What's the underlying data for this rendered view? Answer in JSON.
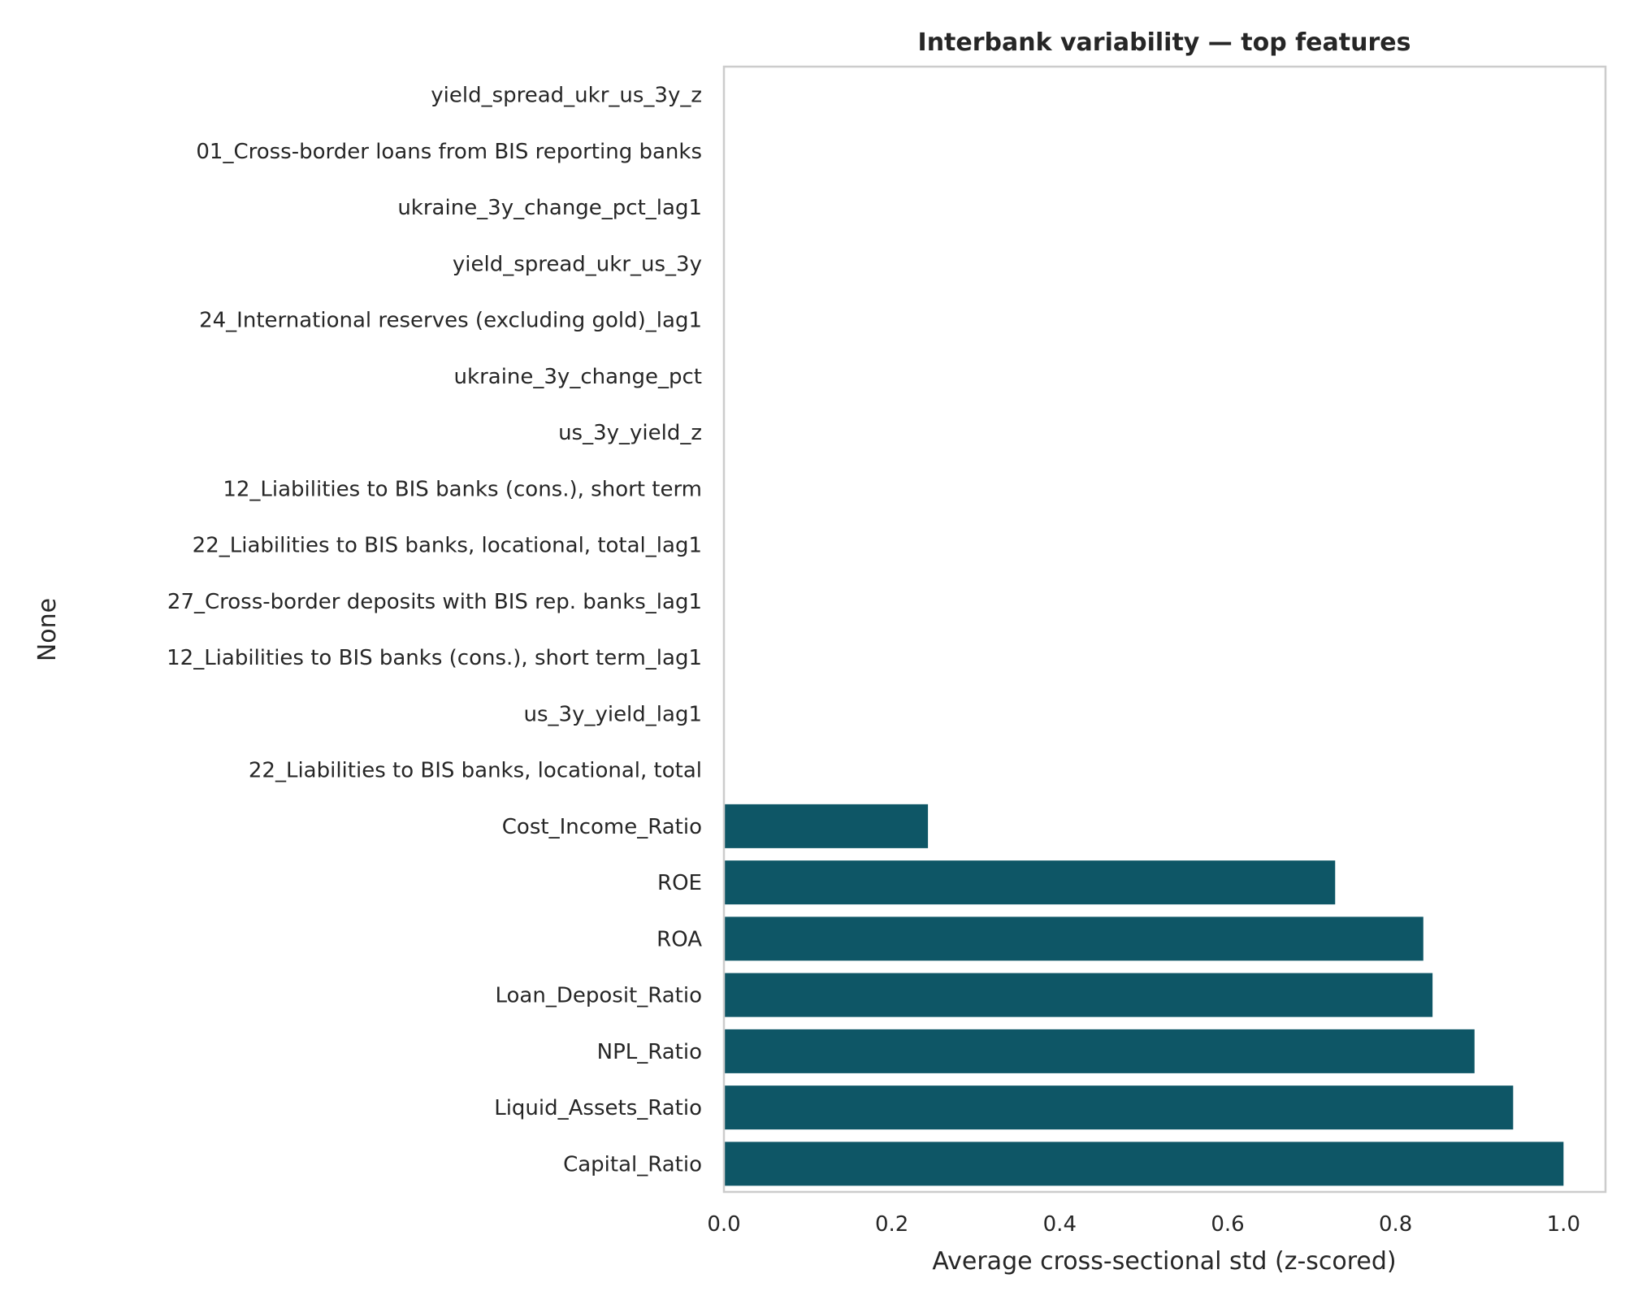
{
  "colors": {
    "bar": "#0e5666",
    "frame": "#cccccc",
    "text": "#262626",
    "background": "#ffffff"
  },
  "chart_data": {
    "type": "bar",
    "orientation": "horizontal",
    "title": "Interbank variability — top features",
    "xlabel": "Average cross-sectional std (z-scored)",
    "ylabel": "None",
    "xlim": [
      0,
      1.05
    ],
    "xticks": [
      0.0,
      0.2,
      0.4,
      0.6,
      0.8,
      1.0
    ],
    "xtick_labels": [
      "0.0",
      "0.2",
      "0.4",
      "0.6",
      "0.8",
      "1.0"
    ],
    "grid": false,
    "categories": [
      "yield_spread_ukr_us_3y_z",
      "01_Cross-border loans from BIS reporting banks",
      "ukraine_3y_change_pct_lag1",
      "yield_spread_ukr_us_3y",
      "24_International reserves (excluding gold)_lag1",
      "ukraine_3y_change_pct",
      "us_3y_yield_z",
      "12_Liabilities to BIS banks (cons.), short term",
      "22_Liabilities to BIS banks, locational, total_lag1",
      "27_Cross-border deposits with BIS rep. banks_lag1",
      "12_Liabilities to BIS banks (cons.), short term_lag1",
      "us_3y_yield_lag1",
      "22_Liabilities to BIS banks, locational, total",
      "Cost_Income_Ratio",
      "ROE",
      "ROA",
      "Loan_Deposit_Ratio",
      "NPL_Ratio",
      "Liquid_Assets_Ratio",
      "Capital_Ratio"
    ],
    "values": [
      0,
      0,
      0,
      0,
      0,
      0,
      0,
      0,
      0,
      0,
      0,
      0,
      0,
      0.243,
      0.728,
      0.833,
      0.844,
      0.894,
      0.94,
      1.0
    ]
  }
}
